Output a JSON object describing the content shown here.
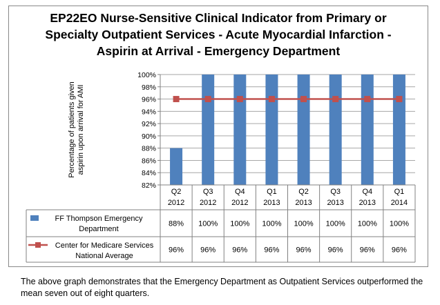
{
  "chart_data": {
    "type": "bar",
    "title": "EP22EO Nurse-Sensitive Clinical Indicator from Primary or Specialty Outpatient Services - Acute Myocardial Infarction - Aspirin at Arrival - Emergency Department",
    "title_lines": [
      "EP22EO Nurse-Sensitive Clinical Indicator from Primary or",
      "Specialty Outpatient Services - Acute Myocardial Infarction -",
      "Aspirin at Arrival - Emergency Department"
    ],
    "ylabel": "Percentage of patients given aspirin upon arrival for AMI",
    "ylabel_lines": [
      "Percentage of patients given",
      "aspirin upon arrival for AMI"
    ],
    "xlabel": "",
    "ylim": [
      82,
      100
    ],
    "yticks": [
      "82%",
      "84%",
      "86%",
      "88%",
      "90%",
      "92%",
      "94%",
      "96%",
      "98%",
      "100%"
    ],
    "grid": true,
    "legend_placement": "data-table",
    "categories": [
      [
        "Q2",
        "2012"
      ],
      [
        "Q3",
        "2012"
      ],
      [
        "Q4",
        "2012"
      ],
      [
        "Q1",
        "2013"
      ],
      [
        "Q2",
        "2013"
      ],
      [
        "Q3",
        "2013"
      ],
      [
        "Q4",
        "2013"
      ],
      [
        "Q1",
        "2014"
      ]
    ],
    "series": [
      {
        "name": "FF Thompson Emergency Department",
        "name_lines": [
          "FF Thompson Emergency",
          "Department"
        ],
        "type": "bar",
        "color": "#4f81bd",
        "values": [
          88,
          100,
          100,
          100,
          100,
          100,
          100,
          100
        ],
        "labels": [
          "88%",
          "100%",
          "100%",
          "100%",
          "100%",
          "100%",
          "100%",
          "100%"
        ]
      },
      {
        "name": "Center for Medicare Services National Average",
        "name_lines": [
          "Center for Medicare Services",
          "National Average"
        ],
        "type": "line",
        "color": "#c0504d",
        "values": [
          96,
          96,
          96,
          96,
          96,
          96,
          96,
          96
        ],
        "labels": [
          "96%",
          "96%",
          "96%",
          "96%",
          "96%",
          "96%",
          "96%",
          "96%"
        ]
      }
    ]
  },
  "caption": "The above graph demonstrates that the Emergency Department as Outpatient Services outperformed the mean seven out of eight quarters."
}
